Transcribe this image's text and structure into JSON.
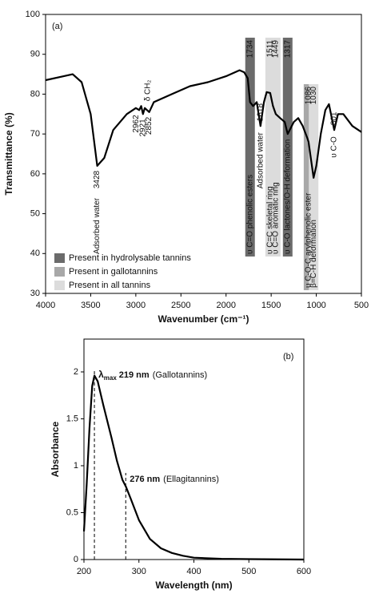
{
  "chart_data": [
    {
      "type": "line",
      "panel": "(a)",
      "x_label": "Wavenumber (cm⁻¹)",
      "y_label": "Transmittance (%)",
      "xlim": [
        4000,
        500
      ],
      "xticks": [
        4000,
        3500,
        3000,
        2500,
        2000,
        1500,
        1000,
        500
      ],
      "ylim": [
        30,
        100
      ],
      "yticks": [
        30,
        40,
        50,
        60,
        70,
        80,
        90,
        100
      ],
      "color": "#000000",
      "x": [
        4000,
        3800,
        3700,
        3600,
        3500,
        3428,
        3350,
        3250,
        3100,
        3000,
        2962,
        2940,
        2921,
        2900,
        2852,
        2800,
        2600,
        2400,
        2200,
        2000,
        1850,
        1800,
        1760,
        1734,
        1700,
        1660,
        1618,
        1580,
        1550,
        1511,
        1480,
        1449,
        1400,
        1350,
        1317,
        1250,
        1200,
        1150,
        1100,
        1086,
        1030,
        1000,
        950,
        900,
        860,
        801,
        760,
        700,
        600,
        500
      ],
      "values": [
        83.5,
        84.5,
        85,
        83,
        75,
        62,
        64,
        71,
        75,
        76.5,
        76,
        77,
        75,
        76.5,
        75.5,
        78,
        80,
        82,
        83,
        84.5,
        86,
        85.5,
        84,
        78,
        77,
        78,
        72,
        78,
        80.5,
        80.3,
        77,
        75,
        74,
        73,
        70,
        73,
        74,
        72,
        69,
        68,
        59,
        62,
        70,
        76,
        77.5,
        71,
        75,
        75,
        72,
        70.5
      ],
      "legend": [
        {
          "name": "Present in hydrolysable tannins",
          "color": "#6b6b6b"
        },
        {
          "name": "Present in gallotannins",
          "color": "#a8a8a8"
        },
        {
          "name": "Present in all tannins",
          "color": "#dcdcdc"
        }
      ],
      "peaks": [
        {
          "x": 3428,
          "note": "Adsorbed water"
        },
        {
          "x": 2962
        },
        {
          "x": 2921,
          "note": "δ CH₂"
        },
        {
          "x": 2852
        },
        {
          "x": 1734,
          "note": "υ C=O phenolic esters",
          "color": "#6b6b6b"
        },
        {
          "x": 1618,
          "note": "Adsorbed water"
        },
        {
          "x": 1511,
          "note": "υ C=C skeletal ring",
          "color": "#dcdcdc"
        },
        {
          "x": 1449,
          "note": "υ C=O aromatic ring",
          "color": "#dcdcdc"
        },
        {
          "x": 1317,
          "note": "υ C-O lactones/O-H deformation",
          "color": "#6b6b6b"
        },
        {
          "x": 1086,
          "note": "υ C-O-C arylphenolic ester",
          "color": "#a8a8a8"
        },
        {
          "x": 1030,
          "note": "β=C-H deformation",
          "color": "#dcdcdc"
        },
        {
          "x": 801,
          "note": "υ C-O"
        }
      ]
    },
    {
      "type": "line",
      "panel": "(b)",
      "x_label": "Wavelength (nm)",
      "y_label": "Absorbance",
      "xlim": [
        200,
        600
      ],
      "xticks": [
        200,
        300,
        400,
        500,
        600
      ],
      "ylim": [
        0,
        2.35
      ],
      "yticks": [
        0,
        0.5,
        1,
        1.5,
        2
      ],
      "color": "#000000",
      "x": [
        200,
        205,
        210,
        215,
        219,
        225,
        235,
        250,
        260,
        270,
        276,
        285,
        300,
        320,
        340,
        360,
        380,
        400,
        450,
        500,
        600
      ],
      "values": [
        0.3,
        0.8,
        1.4,
        1.85,
        1.96,
        1.9,
        1.65,
        1.3,
        1.05,
        0.85,
        0.78,
        0.65,
        0.42,
        0.22,
        0.12,
        0.07,
        0.04,
        0.02,
        0.008,
        0.004,
        0
      ],
      "annotations": [
        {
          "x": 219,
          "symbol": "λ",
          "subscript": "max",
          "label": "219 nm",
          "note": "(Gallotannins)"
        },
        {
          "x": 276,
          "label": "276 nm",
          "note": "(Ellagitannins)"
        }
      ]
    }
  ]
}
